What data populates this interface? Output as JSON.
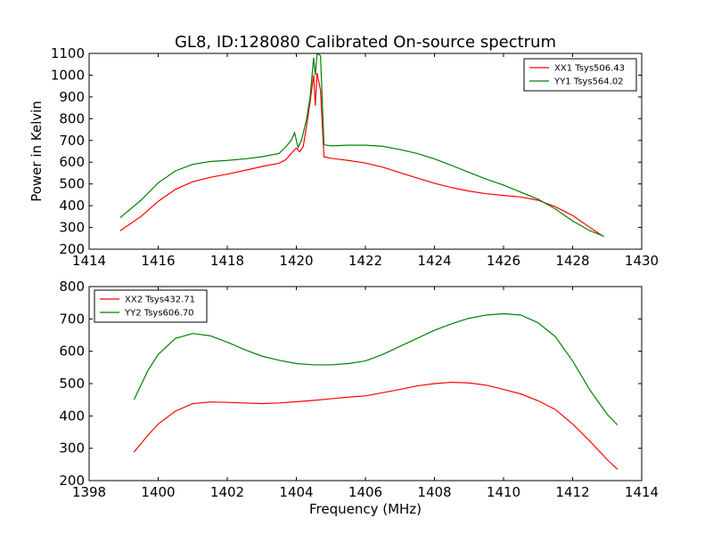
{
  "chart_data": [
    {
      "type": "line",
      "title": "GL8, ID:128080 Calibrated On-source spectrum",
      "xlabel": "",
      "ylabel": "Power in Kelvin",
      "xlim": [
        1414,
        1430
      ],
      "ylim": [
        200,
        1100
      ],
      "xticks": [
        1414,
        1416,
        1418,
        1420,
        1422,
        1424,
        1426,
        1428,
        1430
      ],
      "yticks": [
        200,
        300,
        400,
        500,
        600,
        700,
        800,
        900,
        1000,
        1100
      ],
      "legend_position": "top-right",
      "series": [
        {
          "name": "XX1 Tsys506.43",
          "color": "#ff0000",
          "x": [
            1414.9,
            1415.5,
            1416.0,
            1416.5,
            1417.0,
            1417.5,
            1418.0,
            1418.5,
            1419.0,
            1419.5,
            1419.7,
            1419.85,
            1420.0,
            1420.1,
            1420.2,
            1420.3,
            1420.4,
            1420.5,
            1420.55,
            1420.6,
            1420.7,
            1420.8,
            1421.0,
            1421.5,
            1422.0,
            1422.5,
            1423.0,
            1423.5,
            1424.0,
            1424.5,
            1425.0,
            1425.5,
            1426.0,
            1426.5,
            1427.0,
            1427.5,
            1428.0,
            1428.5,
            1428.9
          ],
          "y": [
            285,
            350,
            420,
            475,
            510,
            530,
            545,
            562,
            580,
            595,
            612,
            640,
            665,
            648,
            672,
            770,
            880,
            1000,
            860,
            1010,
            930,
            625,
            618,
            608,
            596,
            577,
            552,
            527,
            503,
            483,
            467,
            455,
            447,
            440,
            425,
            395,
            355,
            300,
            258
          ]
        },
        {
          "name": "YY1 Tsys564.02",
          "color": "#008000",
          "x": [
            1414.9,
            1415.5,
            1416.0,
            1416.5,
            1417.0,
            1417.5,
            1418.0,
            1418.5,
            1419.0,
            1419.5,
            1419.7,
            1419.85,
            1419.95,
            1420.05,
            1420.15,
            1420.3,
            1420.4,
            1420.5,
            1420.55,
            1420.6,
            1420.7,
            1420.8,
            1421.0,
            1421.5,
            1422.0,
            1422.5,
            1423.0,
            1423.5,
            1424.0,
            1424.5,
            1425.0,
            1425.5,
            1426.0,
            1426.5,
            1427.0,
            1427.5,
            1428.0,
            1428.5,
            1428.9
          ],
          "y": [
            345,
            425,
            505,
            560,
            590,
            603,
            608,
            615,
            625,
            640,
            672,
            700,
            735,
            668,
            700,
            800,
            900,
            1080,
            1000,
            1100,
            1090,
            680,
            675,
            678,
            678,
            673,
            658,
            640,
            615,
            585,
            553,
            522,
            495,
            462,
            430,
            385,
            330,
            285,
            260
          ]
        }
      ]
    },
    {
      "type": "line",
      "title": "",
      "xlabel": "Frequency (MHz)",
      "ylabel": "",
      "xlim": [
        1398,
        1414
      ],
      "ylim": [
        200,
        800
      ],
      "xticks": [
        1398,
        1400,
        1402,
        1404,
        1406,
        1408,
        1410,
        1412,
        1414
      ],
      "yticks": [
        200,
        300,
        400,
        500,
        600,
        700,
        800
      ],
      "legend_position": "top-left",
      "series": [
        {
          "name": "XX2 Tsys432.71",
          "color": "#ff0000",
          "x": [
            1399.3,
            1399.7,
            1400.0,
            1400.5,
            1401.0,
            1401.5,
            1402.0,
            1402.5,
            1403.0,
            1403.5,
            1404.0,
            1404.5,
            1405.0,
            1405.5,
            1406.0,
            1406.5,
            1407.0,
            1407.5,
            1408.0,
            1408.5,
            1409.0,
            1409.5,
            1410.0,
            1410.5,
            1411.0,
            1411.5,
            1412.0,
            1412.5,
            1413.0,
            1413.3
          ],
          "y": [
            288,
            340,
            375,
            415,
            438,
            443,
            442,
            440,
            438,
            440,
            444,
            448,
            453,
            458,
            462,
            472,
            482,
            493,
            500,
            504,
            502,
            495,
            482,
            468,
            447,
            420,
            375,
            322,
            265,
            235
          ]
        },
        {
          "name": "YY2 Tsys606.70",
          "color": "#008000",
          "x": [
            1399.3,
            1399.7,
            1400.0,
            1400.5,
            1401.0,
            1401.5,
            1402.0,
            1402.5,
            1403.0,
            1403.5,
            1404.0,
            1404.5,
            1405.0,
            1405.5,
            1406.0,
            1406.5,
            1407.0,
            1407.5,
            1408.0,
            1408.5,
            1409.0,
            1409.5,
            1410.0,
            1410.5,
            1411.0,
            1411.5,
            1412.0,
            1412.5,
            1413.0,
            1413.3
          ],
          "y": [
            450,
            540,
            590,
            640,
            655,
            648,
            628,
            605,
            585,
            572,
            562,
            558,
            558,
            562,
            570,
            590,
            615,
            640,
            665,
            685,
            702,
            712,
            716,
            712,
            688,
            645,
            570,
            480,
            405,
            372
          ]
        }
      ]
    }
  ]
}
